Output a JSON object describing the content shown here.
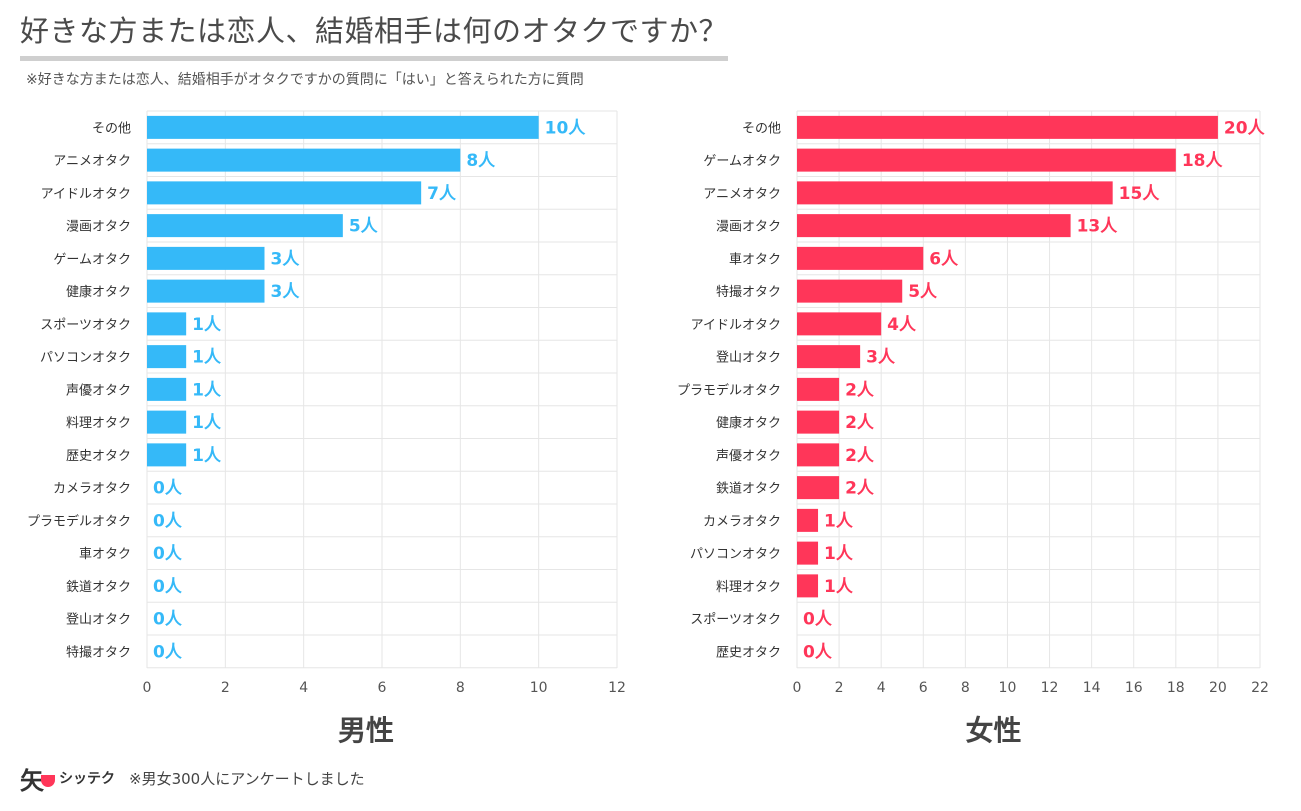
{
  "title": "好きな方または恋人、結婚相手は何のオタクですか？",
  "subtitle": "※好きな方または恋人、結婚相手がオタクですかの質問に「はい」と答えられた方に質問",
  "footer": {
    "logo_mark": "矢",
    "logo_text": "シッテク",
    "note": "※男女300人にアンケートしました"
  },
  "colors": {
    "male": "#35b9f8",
    "female": "#ff3659",
    "grid": "#e6e6e6"
  },
  "chart_data": [
    {
      "type": "bar",
      "orientation": "horizontal",
      "title": "男性",
      "unit": "人",
      "categories": [
        "その他",
        "アニメオタク",
        "アイドルオタク",
        "漫画オタク",
        "ゲームオタク",
        "健康オタク",
        "スポーツオタク",
        "パソコンオタク",
        "声優オタク",
        "料理オタク",
        "歴史オタク",
        "カメラオタク",
        "プラモデルオタク",
        "車オタク",
        "鉄道オタク",
        "登山オタク",
        "特撮オタク"
      ],
      "values": [
        10,
        8,
        7,
        5,
        3,
        3,
        1,
        1,
        1,
        1,
        1,
        0,
        0,
        0,
        0,
        0,
        0
      ],
      "xlim": [
        0,
        12
      ],
      "xticks": [
        0,
        2,
        4,
        6,
        8,
        10,
        12
      ],
      "grid": true,
      "color": "#35b9f8"
    },
    {
      "type": "bar",
      "orientation": "horizontal",
      "title": "女性",
      "unit": "人",
      "categories": [
        "その他",
        "ゲームオタク",
        "アニメオタク",
        "漫画オタク",
        "車オタク",
        "特撮オタク",
        "アイドルオタク",
        "登山オタク",
        "プラモデルオタク",
        "健康オタク",
        "声優オタク",
        "鉄道オタク",
        "カメラオタク",
        "パソコンオタク",
        "料理オタク",
        "スポーツオタク",
        "歴史オタク"
      ],
      "values": [
        20,
        18,
        15,
        13,
        6,
        5,
        4,
        3,
        2,
        2,
        2,
        2,
        1,
        1,
        1,
        0,
        0
      ],
      "xlim": [
        0,
        22
      ],
      "xticks": [
        0,
        2,
        4,
        6,
        8,
        10,
        12,
        14,
        16,
        18,
        20,
        22
      ],
      "grid": true,
      "color": "#ff3659"
    }
  ]
}
